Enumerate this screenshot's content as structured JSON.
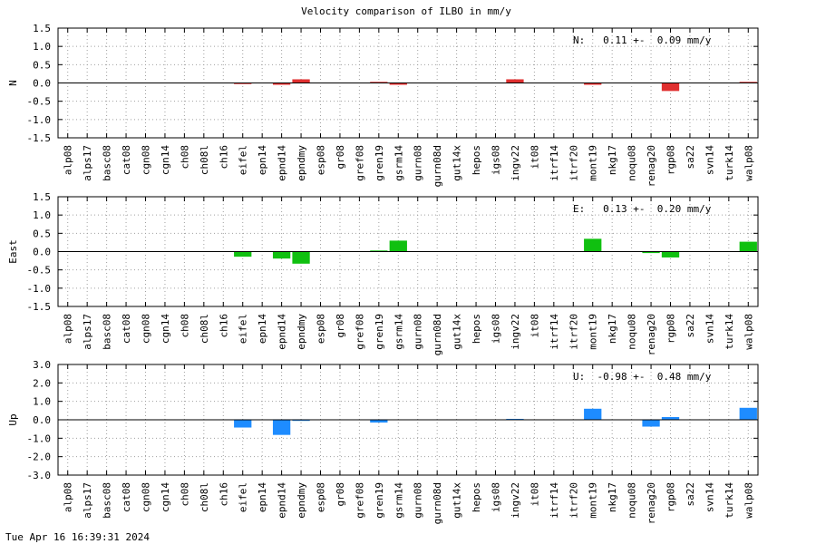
{
  "title": "Velocity comparison of ILBO in mm/y",
  "footer": "Tue Apr 16 16:39:31 2024",
  "colors": {
    "N": "#e03030",
    "E": "#10c010",
    "U": "#1e8cff",
    "grid": "#a0a0a0",
    "axis": "#000000"
  },
  "chart_data": [
    {
      "type": "bar",
      "ylabel": "N",
      "annotation": "N:   0.11 +-  0.09 mm/y",
      "ylim": [
        -1.5,
        1.5
      ],
      "yticks": [
        -1.5,
        -1.0,
        -0.5,
        0.0,
        0.5,
        1.0,
        1.5
      ],
      "ytick_labels": [
        "-1.5",
        "-1.0",
        "-0.5",
        "0.0",
        "0.5",
        "1.0",
        "1.5"
      ],
      "grid": true,
      "categories": [
        "alp08",
        "alps17",
        "basc08",
        "cat08",
        "cgn08",
        "cgn14",
        "ch08",
        "ch08l",
        "ch16",
        "eifel",
        "epn14",
        "epnd14",
        "epndmy",
        "esp08",
        "gr08",
        "gref08",
        "gren19",
        "gsrm14",
        "gurn08",
        "gurn08d",
        "gut14x",
        "hepos",
        "igs08",
        "ingv22",
        "it08",
        "itrf14",
        "itrf20",
        "mont19",
        "nkg17",
        "noqu08",
        "renag20",
        "rgp08",
        "sa22",
        "svn14",
        "turk14",
        "walp08"
      ],
      "values": [
        0,
        0,
        0,
        0,
        0,
        0,
        0,
        0,
        0,
        -0.03,
        0,
        -0.05,
        0.1,
        0,
        0,
        0,
        0.03,
        -0.05,
        0,
        0,
        0,
        0,
        0,
        0.1,
        0,
        0,
        0,
        -0.05,
        0,
        0,
        0,
        -0.22,
        0,
        0,
        0,
        0.03
      ]
    },
    {
      "type": "bar",
      "ylabel": "East",
      "annotation": "E:   0.13 +-  0.20 mm/y",
      "ylim": [
        -1.5,
        1.5
      ],
      "yticks": [
        -1.5,
        -1.0,
        -0.5,
        0.0,
        0.5,
        1.0,
        1.5
      ],
      "ytick_labels": [
        "-1.5",
        "-1.0",
        "-0.5",
        "0.0",
        "0.5",
        "1.0",
        "1.5"
      ],
      "grid": true,
      "categories": [
        "alp08",
        "alps17",
        "basc08",
        "cat08",
        "cgn08",
        "cgn14",
        "ch08",
        "ch08l",
        "ch16",
        "eifel",
        "epn14",
        "epnd14",
        "epndmy",
        "esp08",
        "gr08",
        "gref08",
        "gren19",
        "gsrm14",
        "gurn08",
        "gurn08d",
        "gut14x",
        "hepos",
        "igs08",
        "ingv22",
        "it08",
        "itrf14",
        "itrf20",
        "mont19",
        "nkg17",
        "noqu08",
        "renag20",
        "rgp08",
        "sa22",
        "svn14",
        "turk14",
        "walp08"
      ],
      "values": [
        0,
        0,
        0,
        0,
        0,
        0,
        0,
        0,
        0,
        -0.14,
        0,
        -0.19,
        -0.33,
        0,
        0,
        0,
        0.03,
        0.3,
        0,
        0,
        0,
        0,
        0,
        0,
        0,
        0,
        0,
        0.35,
        0,
        0,
        -0.04,
        -0.16,
        0,
        0,
        0,
        0.27
      ]
    },
    {
      "type": "bar",
      "ylabel": "Up",
      "annotation": "U:  -0.98 +-  0.48 mm/y",
      "ylim": [
        -3.0,
        3.0
      ],
      "yticks": [
        -3.0,
        -2.0,
        -1.0,
        0.0,
        1.0,
        2.0,
        3.0
      ],
      "ytick_labels": [
        "-3.0",
        "-2.0",
        "-1.0",
        "0.0",
        "1.0",
        "2.0",
        "3.0"
      ],
      "grid": true,
      "categories": [
        "alp08",
        "alps17",
        "basc08",
        "cat08",
        "cgn08",
        "cgn14",
        "ch08",
        "ch08l",
        "ch16",
        "eifel",
        "epn14",
        "epnd14",
        "epndmy",
        "esp08",
        "gr08",
        "gref08",
        "gren19",
        "gsrm14",
        "gurn08",
        "gurn08d",
        "gut14x",
        "hepos",
        "igs08",
        "ingv22",
        "it08",
        "itrf14",
        "itrf20",
        "mont19",
        "nkg17",
        "noqu08",
        "renag20",
        "rgp08",
        "sa22",
        "svn14",
        "turk14",
        "walp08"
      ],
      "values": [
        0,
        0,
        0,
        0,
        0,
        0,
        0,
        0,
        0,
        -0.42,
        0,
        -0.82,
        -0.06,
        0,
        0,
        0,
        -0.15,
        0,
        0,
        0,
        0,
        0,
        0,
        0.05,
        0,
        0,
        0,
        0.6,
        0,
        0,
        -0.37,
        0.15,
        0,
        0,
        0,
        0.65
      ]
    }
  ]
}
